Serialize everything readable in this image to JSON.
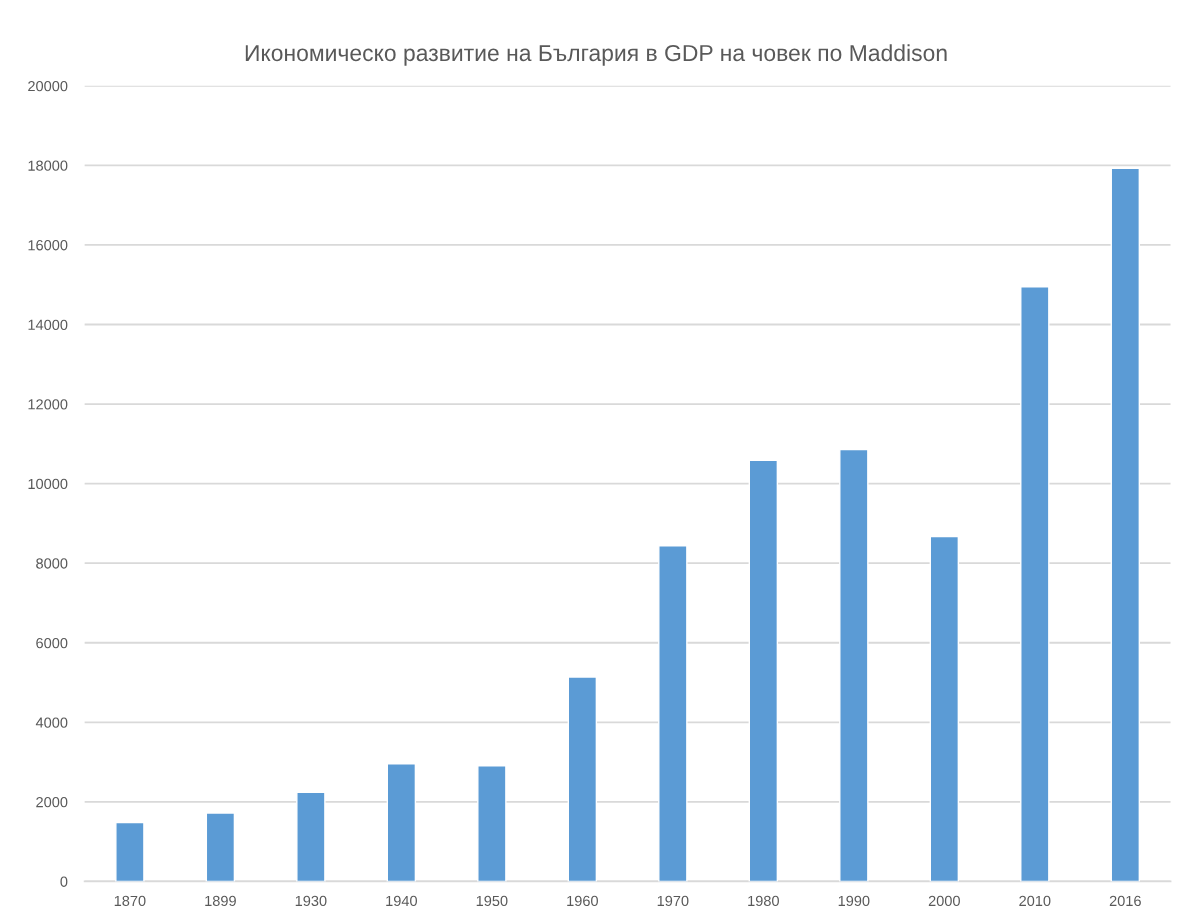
{
  "chart_data": {
    "type": "bar",
    "title": "Икономическо развитие на България в GDP на човек по Maddison",
    "categories": [
      "1870",
      "1899",
      "1930",
      "1940",
      "1950",
      "1960",
      "1970",
      "1980",
      "1990",
      "2000",
      "2010",
      "2016"
    ],
    "values": [
      1480,
      1720,
      2240,
      2960,
      2910,
      5140,
      8440,
      10590,
      10860,
      8670,
      14950,
      17930
    ],
    "color": "#5b9bd5",
    "ylim": [
      0,
      20000
    ],
    "yticks": [
      0,
      2000,
      4000,
      6000,
      8000,
      10000,
      12000,
      14000,
      16000,
      18000,
      20000
    ],
    "grid": "y"
  }
}
